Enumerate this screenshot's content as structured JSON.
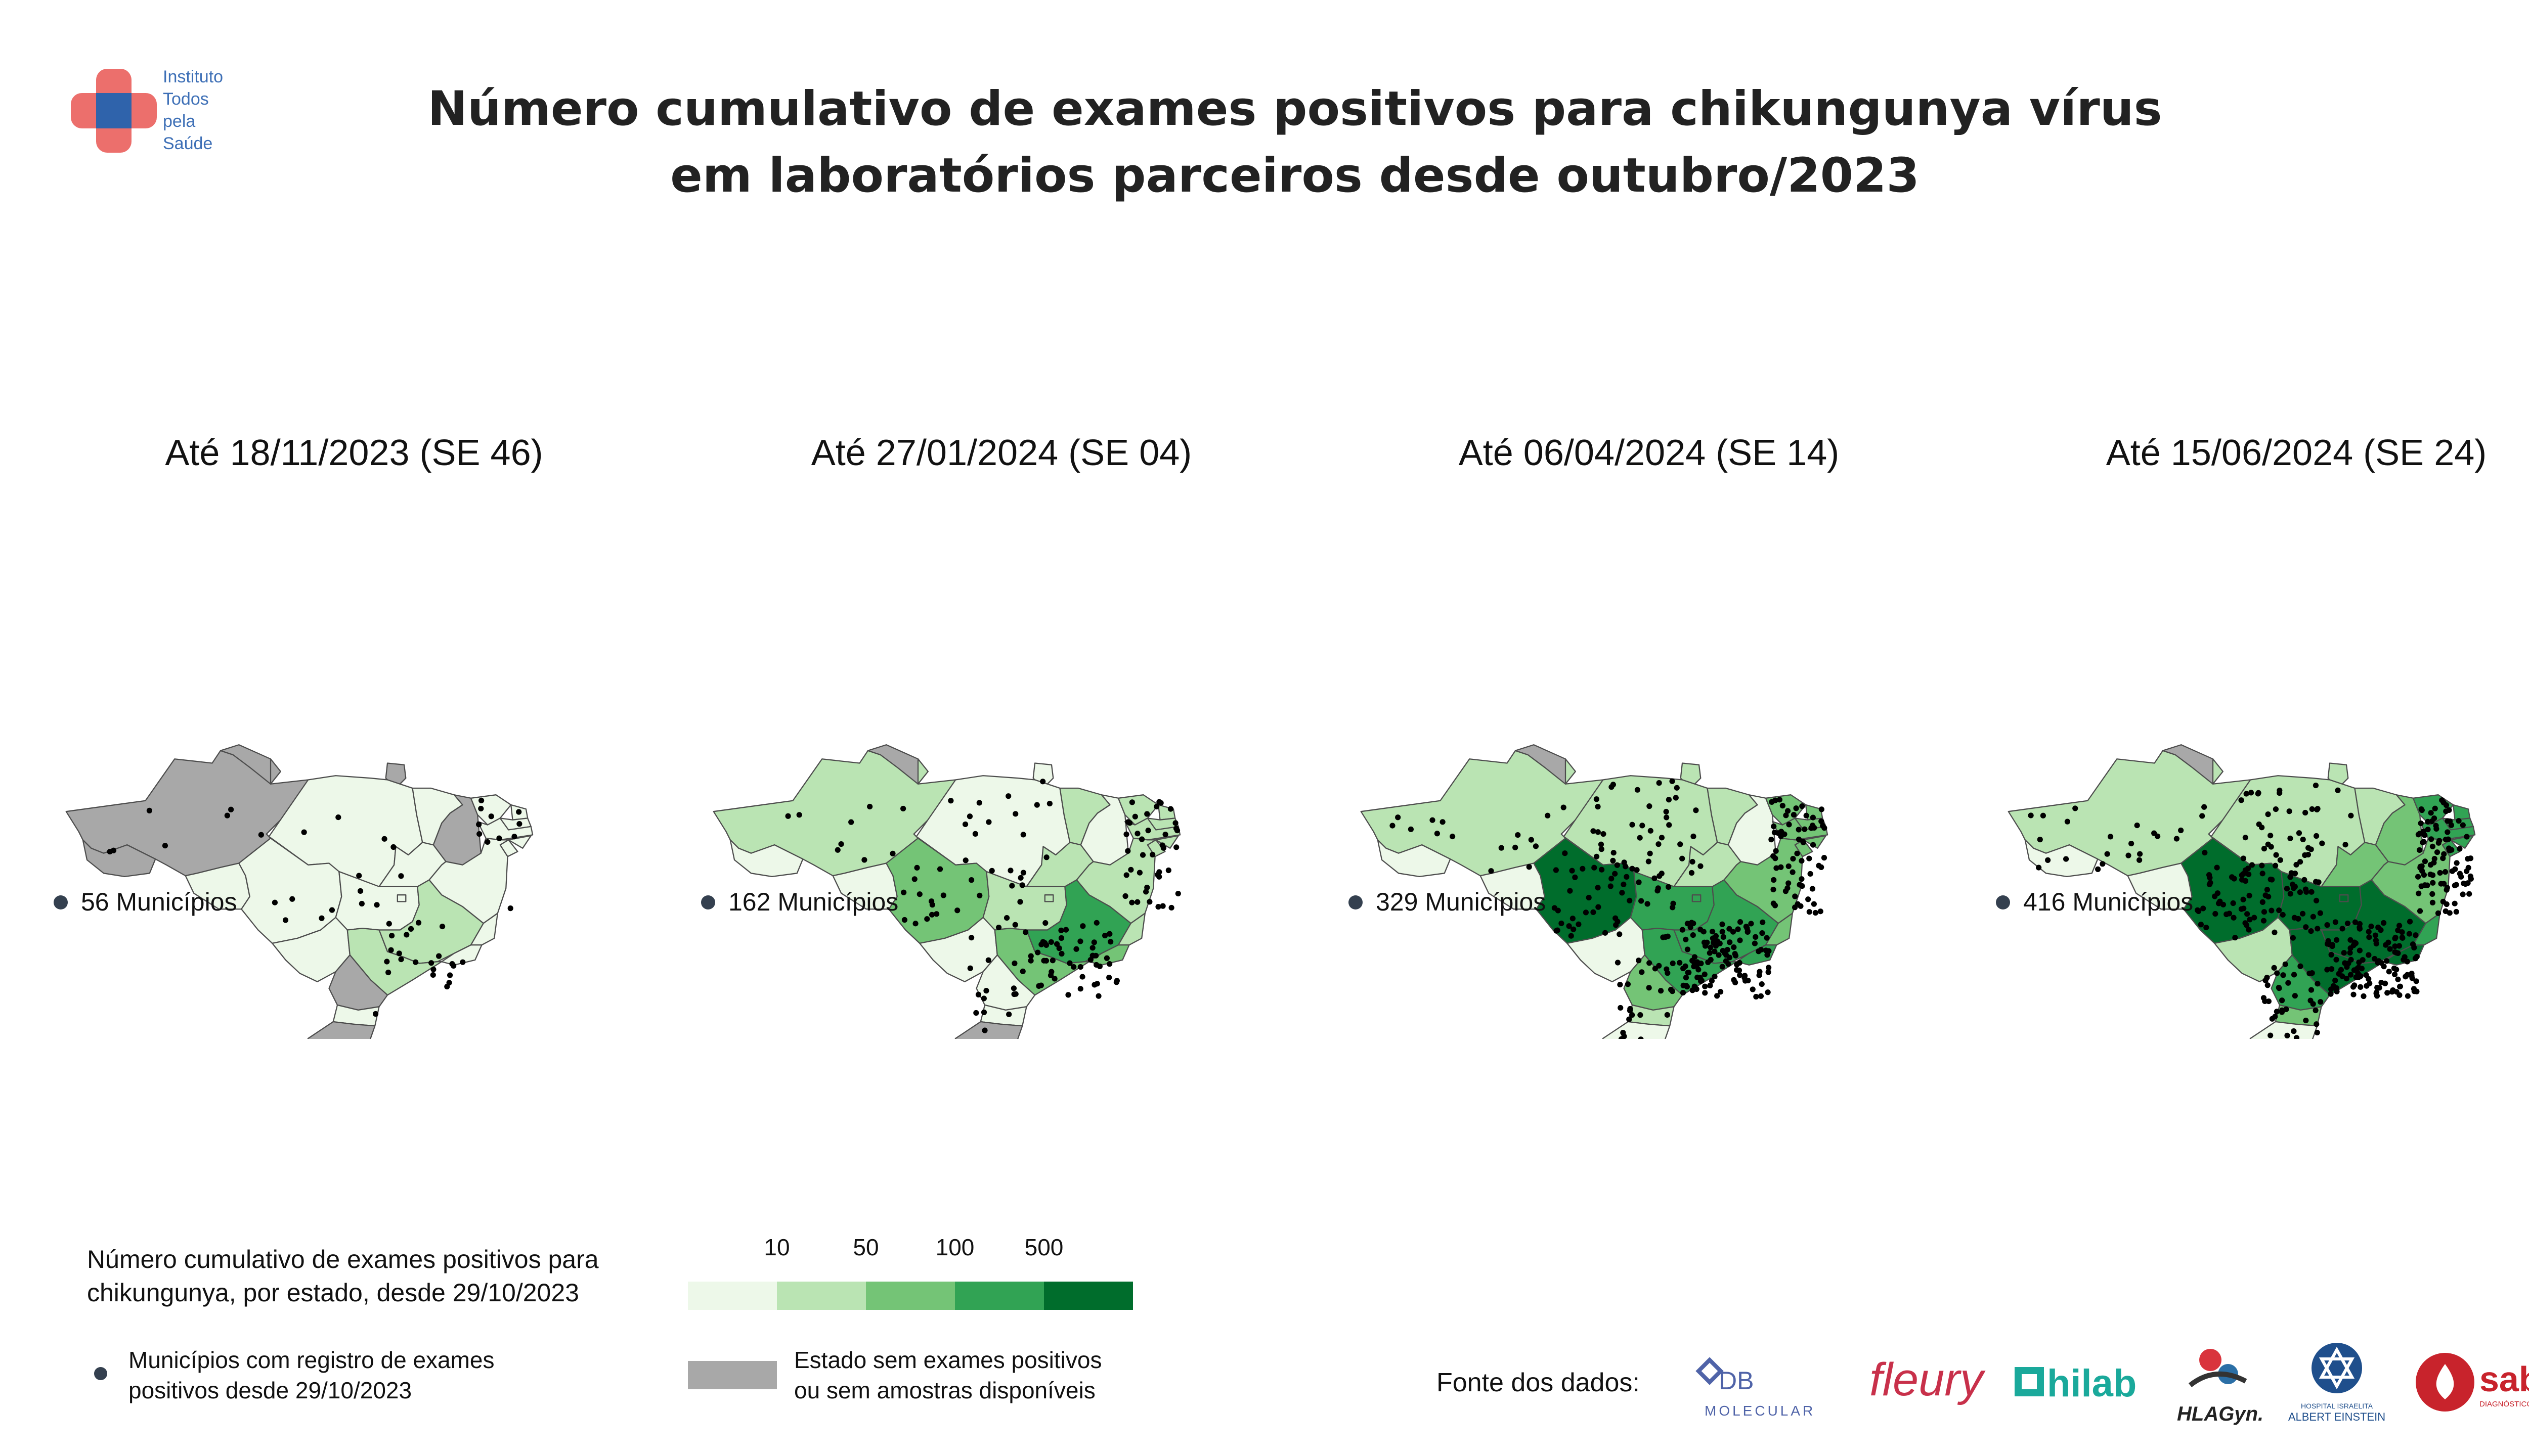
{
  "logo": {
    "lines": [
      "Instituto",
      "Todos",
      "pela",
      "Saúde"
    ]
  },
  "title": {
    "line1": "Número cumulativo de exames positivos para chikungunya vírus",
    "line2": "em laboratórios parceiros desde outubro/2023"
  },
  "colors": {
    "no_data": "#a8a8a8",
    "bin1": "#edf8e9",
    "bin2": "#bae4b3",
    "bin3": "#74c476",
    "bin4": "#31a354",
    "bin5": "#006d2c",
    "dot": "#000000",
    "legend_dot": "#34404f",
    "border": "#4d4d4d"
  },
  "panels": [
    {
      "title": "Até 18/11/2023 (SE 46)",
      "municipios": "56 Municípios",
      "state_classes": {
        "AC": 0,
        "AM": 0,
        "RR": 0,
        "AP": 0,
        "PA": 1,
        "RO": 1,
        "MT": 1,
        "MA": 1,
        "PI": 0,
        "CE": 1,
        "RN": 1,
        "PB": 1,
        "PE": 1,
        "AL": 1,
        "SE": 1,
        "BA": 1,
        "TO": 1,
        "GO": 1,
        "DF": 1,
        "MS": 1,
        "MG": 2,
        "ES": 1,
        "RJ": 1,
        "SP": 2,
        "PR": 0,
        "SC": 1,
        "RS": 0
      },
      "dot_count": 56
    },
    {
      "title": "Até 27/01/2024 (SE 04)",
      "municipios": "162 Municípios",
      "state_classes": {
        "AC": 1,
        "AM": 2,
        "RR": 0,
        "AP": 1,
        "PA": 1,
        "RO": 1,
        "MT": 3,
        "MA": 2,
        "PI": 1,
        "CE": 2,
        "RN": 2,
        "PB": 2,
        "PE": 2,
        "AL": 2,
        "SE": 2,
        "BA": 2,
        "TO": 2,
        "GO": 2,
        "DF": 2,
        "MS": 1,
        "MG": 4,
        "ES": 2,
        "RJ": 3,
        "SP": 3,
        "PR": 1,
        "SC": 1,
        "RS": 0
      },
      "dot_count": 162
    },
    {
      "title": "Até 06/04/2024 (SE 14)",
      "municipios": "329 Municípios",
      "state_classes": {
        "AC": 1,
        "AM": 2,
        "RR": 0,
        "AP": 2,
        "PA": 2,
        "RO": 1,
        "MT": 5,
        "MA": 2,
        "PI": 1,
        "CE": 3,
        "RN": 3,
        "PB": 3,
        "PE": 3,
        "AL": 3,
        "SE": 3,
        "BA": 3,
        "TO": 2,
        "GO": 4,
        "DF": 4,
        "MS": 1,
        "MG": 4,
        "ES": 3,
        "RJ": 4,
        "SP": 4,
        "PR": 3,
        "SC": 2,
        "RS": 1
      },
      "dot_count": 329
    },
    {
      "title": "Até 15/06/2024 (SE 24)",
      "municipios": "416 Municípios",
      "state_classes": {
        "AC": 1,
        "AM": 2,
        "RR": 0,
        "AP": 2,
        "PA": 2,
        "RO": 1,
        "MT": 5,
        "MA": 2,
        "PI": 3,
        "CE": 4,
        "RN": 4,
        "PB": 4,
        "PE": 4,
        "AL": 4,
        "SE": 4,
        "BA": 3,
        "TO": 3,
        "GO": 5,
        "DF": 5,
        "MS": 2,
        "MG": 5,
        "ES": 4,
        "RJ": 5,
        "SP": 5,
        "PR": 4,
        "SC": 3,
        "RS": 1
      },
      "dot_count": 416
    }
  ],
  "legend": {
    "title_line1": "Número cumulativo de exames positivos para",
    "title_line2": "chikungunya, por estado, desde 29/10/2023",
    "ticks": [
      "10",
      "50",
      "100",
      "500"
    ],
    "dot_label_line1": "Municípios com registro de exames",
    "dot_label_line2": "positivos desde 29/10/2023",
    "gray_label_line1": "Estado sem exames positivos",
    "gray_label_line2": "ou sem amostras disponíveis"
  },
  "sources": {
    "label": "Fonte dos dados:",
    "logos": [
      {
        "name": "DB Molecular",
        "text1": "DB",
        "text2": "MOLECULAR"
      },
      {
        "name": "fleury",
        "text1": "fleury"
      },
      {
        "name": "hilab",
        "text1": "hilab"
      },
      {
        "name": "HLAGyn",
        "text1": "HLAGyn."
      },
      {
        "name": "Albert Einstein",
        "text1": "HOSPITAL ISRAELITA",
        "text2": "ALBERT EINSTEIN"
      },
      {
        "name": "sabin",
        "text1": "sabin",
        "text2": "DIAGNÓSTICO E SAÚDE"
      }
    ]
  }
}
